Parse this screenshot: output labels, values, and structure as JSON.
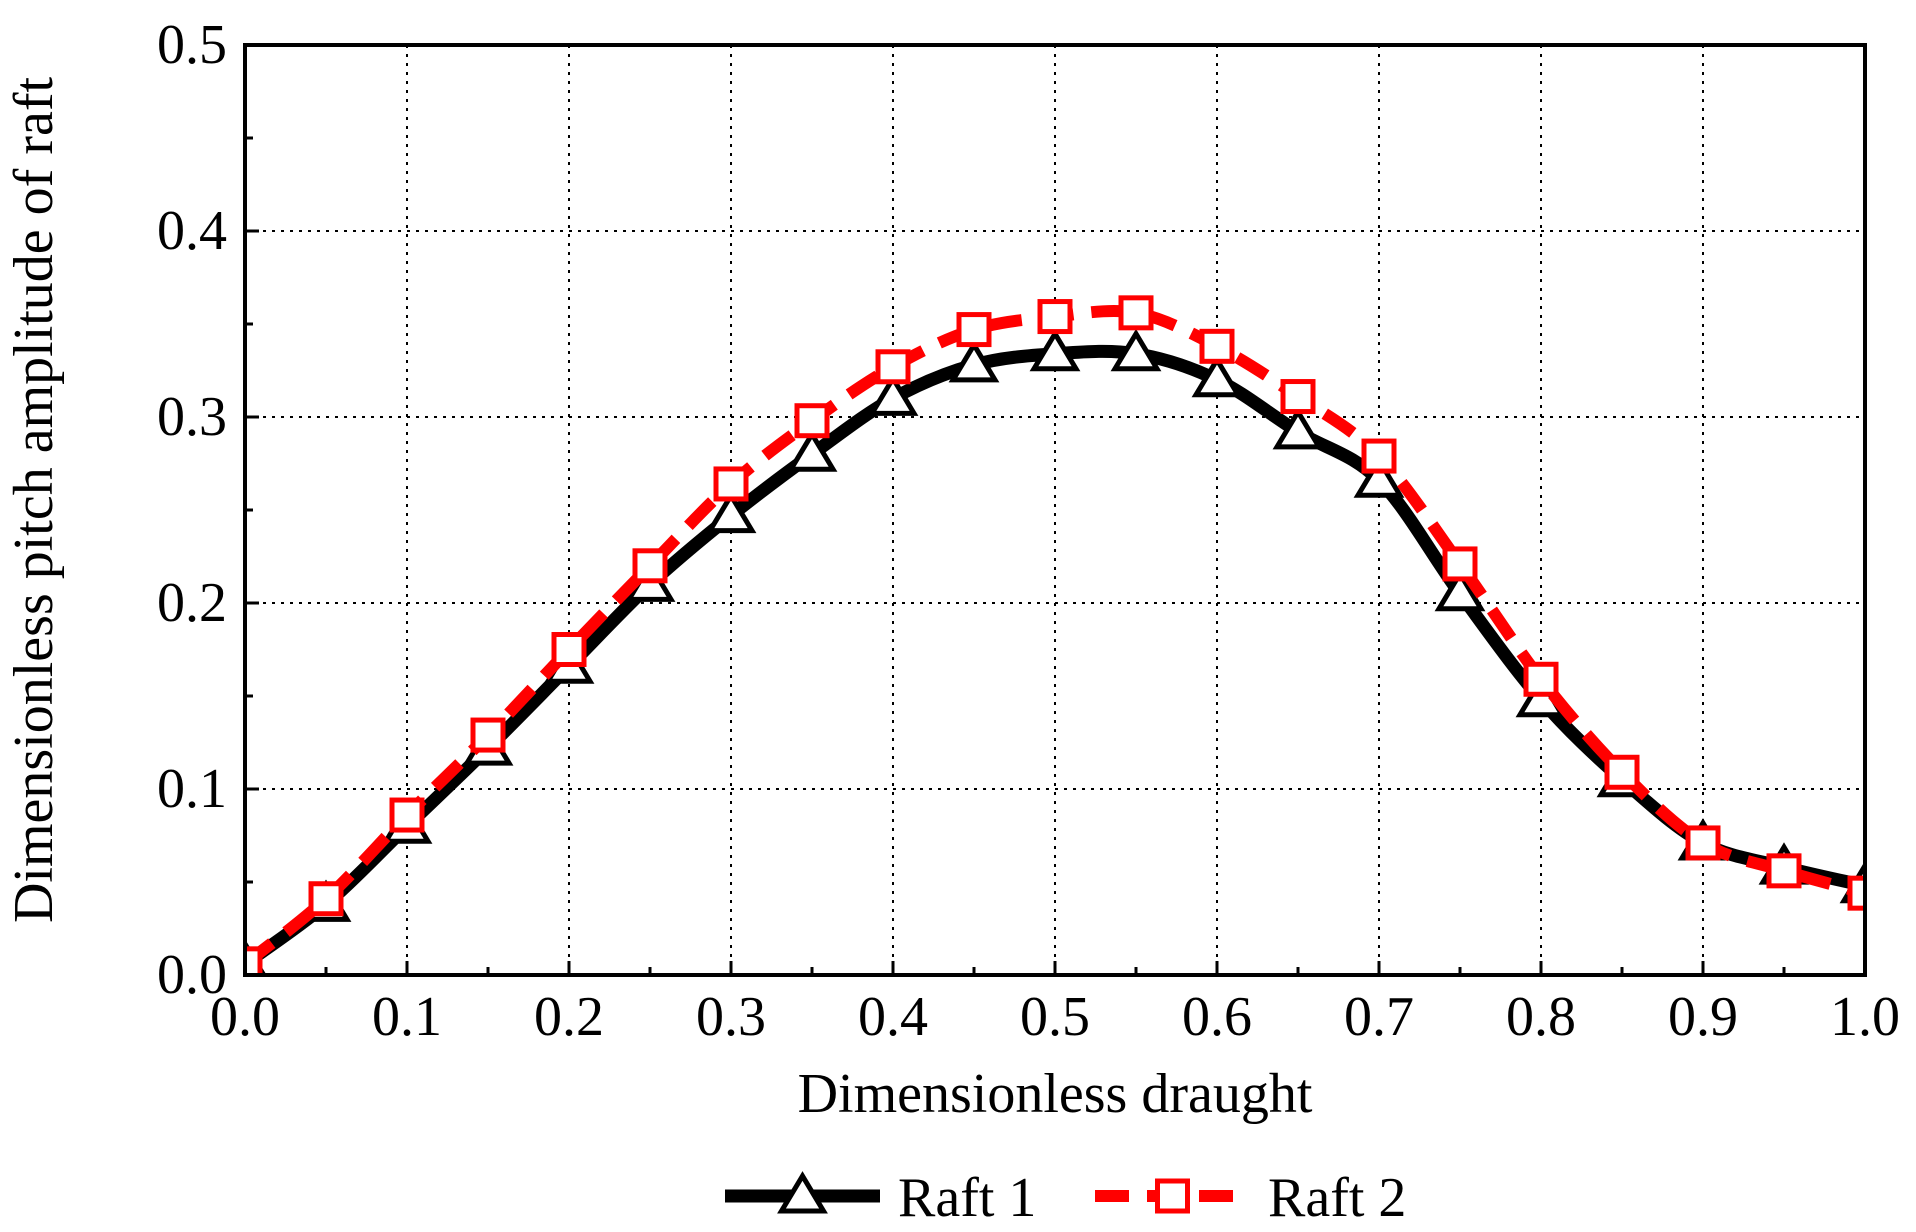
{
  "chart_data": {
    "type": "line",
    "title": "",
    "xlabel": "Dimensionless draught",
    "ylabel": "Dimensionless pitch amplitude of raft",
    "xlim": [
      0.0,
      1.0
    ],
    "ylim": [
      0.0,
      0.5
    ],
    "xticks": [
      "0.0",
      "0.1",
      "0.2",
      "0.3",
      "0.4",
      "0.5",
      "0.6",
      "0.7",
      "0.8",
      "0.9",
      "1.0"
    ],
    "yticks": [
      "0.0",
      "0.1",
      "0.2",
      "0.3",
      "0.4",
      "0.5"
    ],
    "grid": true,
    "legend_position": "bottom",
    "x": [
      0.0,
      0.05,
      0.1,
      0.15,
      0.2,
      0.25,
      0.3,
      0.35,
      0.4,
      0.45,
      0.5,
      0.55,
      0.6,
      0.65,
      0.7,
      0.75,
      0.8,
      0.85,
      0.9,
      0.95,
      1.0
    ],
    "series": [
      {
        "name": "Raft 1",
        "color": "#000000",
        "marker": "triangle-open",
        "line_style": "solid",
        "values": [
          0.006,
          0.038,
          0.08,
          0.122,
          0.166,
          0.21,
          0.247,
          0.28,
          0.31,
          0.328,
          0.334,
          0.334,
          0.32,
          0.292,
          0.266,
          0.205,
          0.148,
          0.105,
          0.071,
          0.058,
          0.048
        ]
      },
      {
        "name": "Raft 2",
        "color": "#ff0000",
        "marker": "square-open",
        "line_style": "dashed",
        "values": [
          0.006,
          0.041,
          0.086,
          0.129,
          0.175,
          0.22,
          0.264,
          0.298,
          0.327,
          0.347,
          0.354,
          0.356,
          0.338,
          0.311,
          0.279,
          0.221,
          0.159,
          0.109,
          0.071,
          0.056,
          0.044
        ]
      }
    ]
  }
}
